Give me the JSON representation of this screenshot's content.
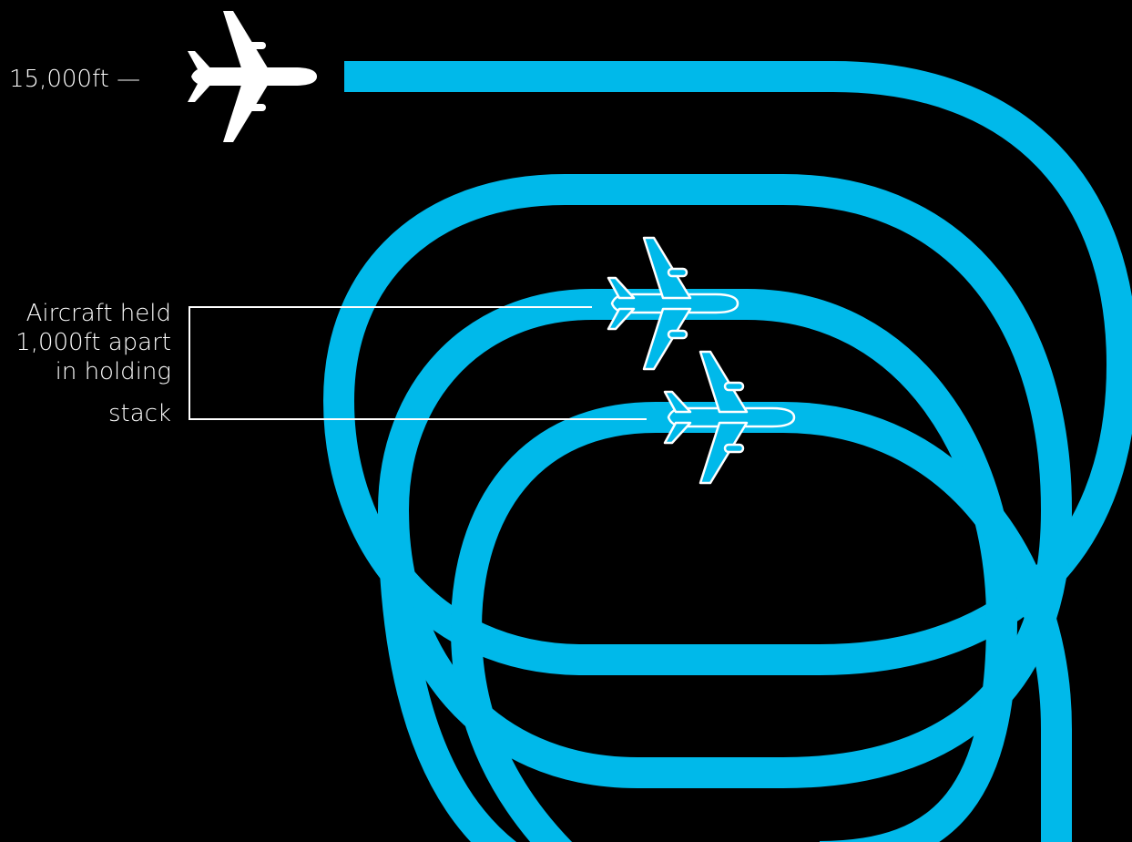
{
  "colors": {
    "background": "#000000",
    "track": "#00b9ea",
    "plane_fill": "#ffffff",
    "plane_outline": "#ffffff",
    "leader_line": "#ffffff",
    "text": "#ffffff"
  },
  "altitude_label": "15,000ft —",
  "annotation": {
    "lines": [
      "Aircraft held",
      "1,000ft apart",
      "in holding",
      "stack"
    ]
  },
  "icons": {
    "top_plane": "airplane-solid-icon",
    "held_planes": "airplane-outline-icon"
  }
}
